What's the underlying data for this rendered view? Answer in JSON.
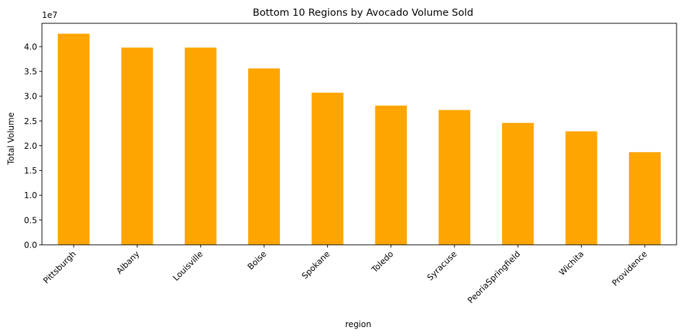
{
  "chart_data": {
    "type": "bar",
    "title": "Bottom 10 Regions by Avocado Volume Sold",
    "xlabel": "region",
    "ylabel": "Total Volume",
    "y_offset_label": "1e7",
    "categories": [
      "Pittsburgh",
      "Albany",
      "Louisville",
      "Boise",
      "Spokane",
      "Toledo",
      "Syracuse",
      "PeoriaSpringfield",
      "Wichita",
      "Providence"
    ],
    "values": [
      42600000,
      39800000,
      39800000,
      35600000,
      30700000,
      28100000,
      27200000,
      24600000,
      22900000,
      18700000
    ],
    "ylim": [
      0,
      44700000
    ],
    "yticks": [
      0,
      5000000,
      10000000,
      15000000,
      20000000,
      25000000,
      30000000,
      35000000,
      40000000
    ],
    "ytick_labels": [
      "0.0",
      "0.5",
      "1.0",
      "1.5",
      "2.0",
      "2.5",
      "3.0",
      "3.5",
      "4.0"
    ],
    "grid": false,
    "colors": {
      "bar": "#FFA500",
      "axis": "#000000"
    }
  }
}
